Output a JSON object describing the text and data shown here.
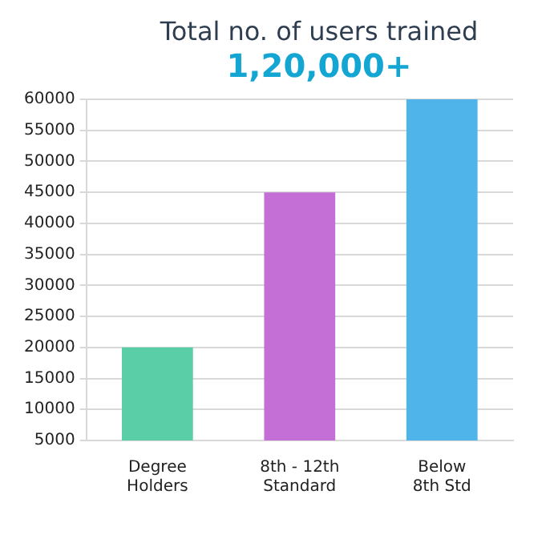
{
  "chart_data": {
    "type": "bar",
    "title": "Total no. of users trained",
    "subtitle": "1,20,000+",
    "categories": [
      "Degree\nHolders",
      "8th - 12th\nStandard",
      "Below\n8th Std"
    ],
    "values": [
      20000,
      45000,
      60000
    ],
    "colors": [
      "#5acea6",
      "#c36fd5",
      "#4fb4e9"
    ],
    "ylim": [
      5000,
      60000
    ],
    "yticks": [
      5000,
      10000,
      15000,
      20000,
      25000,
      30000,
      35000,
      40000,
      45000,
      50000,
      55000,
      60000
    ],
    "grid": "y",
    "legend": false
  }
}
